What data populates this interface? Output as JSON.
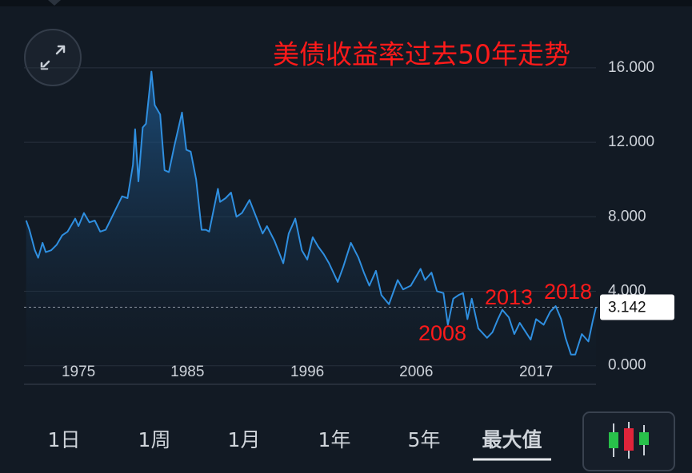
{
  "chart_data": {
    "type": "line",
    "title": "美债收益率过去50年走势",
    "x": [
      1970.2,
      1970.5,
      1971.0,
      1971.3,
      1971.7,
      1972.0,
      1972.5,
      1973.0,
      1973.5,
      1974.0,
      1974.7,
      1975.0,
      1975.5,
      1976.0,
      1976.5,
      1977.0,
      1977.5,
      1978.0,
      1978.5,
      1979.0,
      1979.5,
      1980.0,
      1980.2,
      1980.5,
      1980.9,
      1981.2,
      1981.7,
      1982.0,
      1982.5,
      1982.9,
      1983.3,
      1983.8,
      1984.5,
      1984.9,
      1985.3,
      1985.8,
      1986.3,
      1986.7,
      1987.0,
      1987.8,
      1988.0,
      1988.5,
      1989.0,
      1989.5,
      1990.0,
      1990.7,
      1991.3,
      1991.9,
      1992.3,
      1993.0,
      1993.8,
      1994.3,
      1994.9,
      1995.5,
      1996.0,
      1996.5,
      1997.0,
      1997.5,
      1998.0,
      1998.8,
      1999.3,
      2000.0,
      2000.7,
      2001.2,
      2001.7,
      2002.3,
      2002.8,
      2003.5,
      2004.3,
      2004.8,
      2005.5,
      2006.4,
      2006.8,
      2007.4,
      2007.9,
      2008.5,
      2008.9,
      2009.4,
      2009.9,
      2010.3,
      2010.7,
      2011.1,
      2011.7,
      2012.5,
      2013.0,
      2013.5,
      2013.9,
      2014.5,
      2015.0,
      2015.5,
      2016.5,
      2017.0,
      2017.7,
      2018.3,
      2018.8,
      2019.3,
      2019.7,
      2020.2,
      2020.6,
      2021.2,
      2021.8,
      2022.2,
      2022.5
    ],
    "series": [
      {
        "color": "#2f8fe0",
        "values": [
          7.8,
          7.3,
          6.2,
          5.8,
          6.6,
          6.1,
          6.2,
          6.5,
          7.0,
          7.2,
          7.9,
          7.5,
          8.2,
          7.7,
          7.8,
          7.2,
          7.3,
          7.9,
          8.5,
          9.1,
          9.0,
          10.8,
          12.7,
          9.9,
          12.8,
          13.0,
          15.8,
          14.0,
          13.5,
          10.5,
          10.4,
          11.8,
          13.6,
          11.6,
          11.5,
          10.0,
          7.3,
          7.3,
          7.2,
          9.5,
          8.8,
          9.0,
          9.3,
          8.0,
          8.2,
          8.9,
          8.0,
          7.1,
          7.5,
          6.7,
          5.5,
          7.1,
          7.9,
          6.2,
          5.7,
          6.9,
          6.4,
          6.0,
          5.5,
          4.5,
          5.3,
          6.6,
          5.8,
          5.0,
          4.3,
          5.1,
          3.8,
          3.3,
          4.6,
          4.1,
          4.3,
          5.2,
          4.6,
          5.0,
          4.0,
          3.9,
          2.2,
          3.6,
          3.8,
          3.9,
          2.5,
          3.6,
          2.0,
          1.5,
          1.8,
          2.5,
          3.0,
          2.6,
          1.7,
          2.3,
          1.4,
          2.5,
          2.2,
          2.9,
          3.2,
          2.5,
          1.5,
          0.6,
          0.6,
          1.7,
          1.3,
          2.4,
          3.142
        ]
      }
    ],
    "xlim": [
      1970,
      2022.5
    ],
    "xticks": [
      1975,
      1985,
      1996,
      2006,
      2017
    ],
    "ylim": [
      -1,
      19
    ],
    "yticks": [
      {
        "value": 0,
        "label": "0.000"
      },
      {
        "value": 4,
        "label": "4.000"
      },
      {
        "value": 8,
        "label": "8.000"
      },
      {
        "value": 12,
        "label": "12.000"
      },
      {
        "value": 16,
        "label": "16.000"
      }
    ],
    "grid": true,
    "annotations": [
      "2008",
      "2013",
      "2018"
    ],
    "annotation_color": "#ff1a1a"
  },
  "tabs": [
    "1日",
    "1周",
    "1月",
    "1年",
    "5年",
    "最大值"
  ],
  "selected_tab": 5
}
